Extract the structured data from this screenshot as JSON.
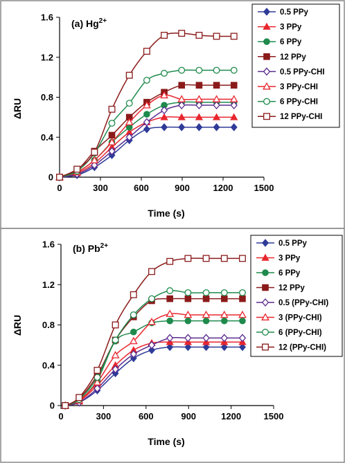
{
  "chart_data": [
    {
      "type": "line",
      "panel_label": "(a) Hg",
      "panel_label_sup": "2+",
      "xlabel": "Time (s)",
      "ylabel": "ΔRU",
      "xlim": [
        0,
        1500
      ],
      "ylim": [
        0,
        1.6
      ],
      "x_ticks": [
        "0",
        "300",
        "600",
        "900",
        "1200",
        "1500"
      ],
      "y_ticks": [
        "0",
        "0.4",
        "0.8",
        "1.2",
        "1.6"
      ],
      "legend_position": "top-right",
      "x": [
        0,
        128,
        256,
        384,
        512,
        640,
        768,
        896,
        1024,
        1152,
        1280
      ],
      "series": [
        {
          "name": "0.5 PPy",
          "color": "#2e3b98",
          "marker": "diamond",
          "filled": true,
          "values": [
            0,
            0.02,
            0.1,
            0.22,
            0.37,
            0.48,
            0.5,
            0.5,
            0.5,
            0.5,
            0.5
          ]
        },
        {
          "name": "3 PPy",
          "color": "#e8262e",
          "marker": "triangle",
          "filled": true,
          "values": [
            0,
            0.04,
            0.14,
            0.3,
            0.45,
            0.55,
            0.6,
            0.6,
            0.6,
            0.6,
            0.6
          ]
        },
        {
          "name": "6 PPy",
          "color": "#1e8a4c",
          "marker": "circle",
          "filled": true,
          "values": [
            0,
            0.05,
            0.17,
            0.35,
            0.5,
            0.63,
            0.72,
            0.75,
            0.75,
            0.75,
            0.75
          ]
        },
        {
          "name": "12 PPy",
          "color": "#8b1a1a",
          "marker": "square",
          "filled": true,
          "values": [
            0,
            0.07,
            0.26,
            0.42,
            0.6,
            0.75,
            0.85,
            0.92,
            0.92,
            0.92,
            0.92
          ]
        },
        {
          "name": "0.5 PPy-CHI",
          "color": "#5a2b8f",
          "marker": "diamond",
          "filled": false,
          "values": [
            0,
            0.03,
            0.12,
            0.26,
            0.4,
            0.55,
            0.67,
            0.72,
            0.72,
            0.72,
            0.72
          ]
        },
        {
          "name": "3 PPy-CHI",
          "color": "#e8262e",
          "marker": "triangle",
          "filled": false,
          "values": [
            0,
            0.05,
            0.17,
            0.35,
            0.55,
            0.72,
            0.82,
            0.78,
            0.78,
            0.78,
            0.78
          ]
        },
        {
          "name": "6 PPy-CHI",
          "color": "#1e8a4c",
          "marker": "circle",
          "filled": false,
          "values": [
            0,
            0.06,
            0.24,
            0.54,
            0.74,
            0.97,
            1.04,
            1.07,
            1.07,
            1.07,
            1.07
          ]
        },
        {
          "name": "12 PPy-CHI",
          "color": "#8b1a1a",
          "marker": "square",
          "filled": false,
          "values": [
            0,
            0.08,
            0.25,
            0.68,
            1.02,
            1.26,
            1.42,
            1.44,
            1.42,
            1.41,
            1.41
          ]
        }
      ]
    },
    {
      "type": "line",
      "panel_label": "(b) Pb",
      "panel_label_sup": "2+",
      "xlabel": "Time (s)",
      "ylabel": "ΔRU",
      "xlim": [
        0,
        1500
      ],
      "ylim": [
        0,
        1.6
      ],
      "x_ticks": [
        "0",
        "300",
        "600",
        "900",
        "1200",
        "1500"
      ],
      "y_ticks": [
        "0",
        "0.4",
        "0.8",
        "1.2",
        "1.6"
      ],
      "legend_position": "top-right",
      "x": [
        30,
        128,
        256,
        384,
        512,
        640,
        768,
        896,
        1024,
        1152,
        1280
      ],
      "series": [
        {
          "name": "0.5 PPy",
          "color": "#2e3b98",
          "marker": "diamond",
          "filled": true,
          "values": [
            0,
            0.03,
            0.15,
            0.32,
            0.47,
            0.55,
            0.58,
            0.58,
            0.58,
            0.58,
            0.58
          ]
        },
        {
          "name": "3 PPy",
          "color": "#e8262e",
          "marker": "triangle",
          "filled": true,
          "values": [
            0,
            0.04,
            0.2,
            0.4,
            0.55,
            0.62,
            0.63,
            0.63,
            0.63,
            0.63,
            0.63
          ]
        },
        {
          "name": "6 PPy",
          "color": "#1e8a4c",
          "marker": "circle",
          "filled": true,
          "values": [
            0,
            0.05,
            0.25,
            0.64,
            0.73,
            0.82,
            0.84,
            0.84,
            0.84,
            0.84,
            0.84
          ]
        },
        {
          "name": "12 PPy",
          "color": "#8b1a1a",
          "marker": "square",
          "filled": true,
          "values": [
            0,
            0.07,
            0.3,
            0.65,
            0.88,
            1.04,
            1.06,
            1.06,
            1.06,
            1.06,
            1.06
          ]
        },
        {
          "name": "0.5 (PPy-CHI)",
          "color": "#5a2b8f",
          "marker": "diamond",
          "filled": false,
          "values": [
            0,
            0.03,
            0.17,
            0.36,
            0.51,
            0.6,
            0.67,
            0.67,
            0.67,
            0.67,
            0.67
          ]
        },
        {
          "name": "3 (PPy-CHI)",
          "color": "#e8262e",
          "marker": "triangle",
          "filled": false,
          "values": [
            0,
            0.05,
            0.23,
            0.5,
            0.64,
            0.83,
            0.91,
            0.9,
            0.9,
            0.9,
            0.9
          ]
        },
        {
          "name": "6 (PPy-CHI)",
          "color": "#1e8a4c",
          "marker": "circle",
          "filled": false,
          "values": [
            0,
            0.06,
            0.28,
            0.65,
            0.9,
            1.06,
            1.14,
            1.12,
            1.12,
            1.12,
            1.12
          ]
        },
        {
          "name": "12 (PPy-CHI)",
          "color": "#8b1a1a",
          "marker": "square",
          "filled": false,
          "values": [
            0,
            0.08,
            0.35,
            0.8,
            1.1,
            1.33,
            1.43,
            1.46,
            1.46,
            1.46,
            1.46
          ]
        }
      ]
    }
  ]
}
